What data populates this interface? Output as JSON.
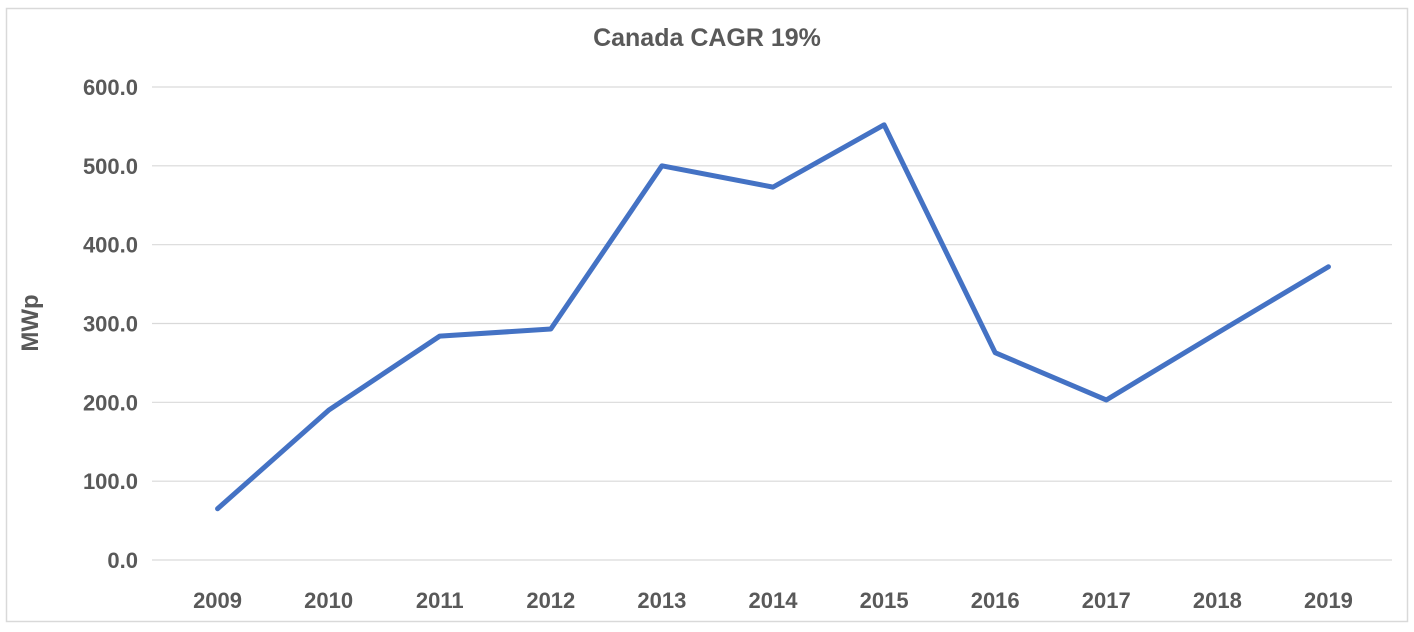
{
  "title": "Canada CAGR 19%",
  "colors": {
    "line": "#4472C4",
    "text": "#595959",
    "gridline": "#D9D9D9",
    "border": "#D9D9D9",
    "background": "#FFFFFF"
  },
  "chart_data": {
    "type": "line",
    "title": "Canada CAGR 19%",
    "xlabel": "",
    "ylabel": "MWp",
    "categories": [
      "2009",
      "2010",
      "2011",
      "2012",
      "2013",
      "2014",
      "2015",
      "2016",
      "2017",
      "2018",
      "2019"
    ],
    "series": [
      {
        "values": [
          65,
          190,
          284,
          293,
          500,
          473,
          552,
          263,
          203,
          288,
          372
        ]
      }
    ],
    "ylim": [
      0,
      600
    ],
    "ytick_interval": 100,
    "ytick_labels": [
      "0.0",
      "100.0",
      "200.0",
      "300.0",
      "400.0",
      "500.0",
      "600.0"
    ],
    "grid": true,
    "legend": false,
    "markers": false
  }
}
